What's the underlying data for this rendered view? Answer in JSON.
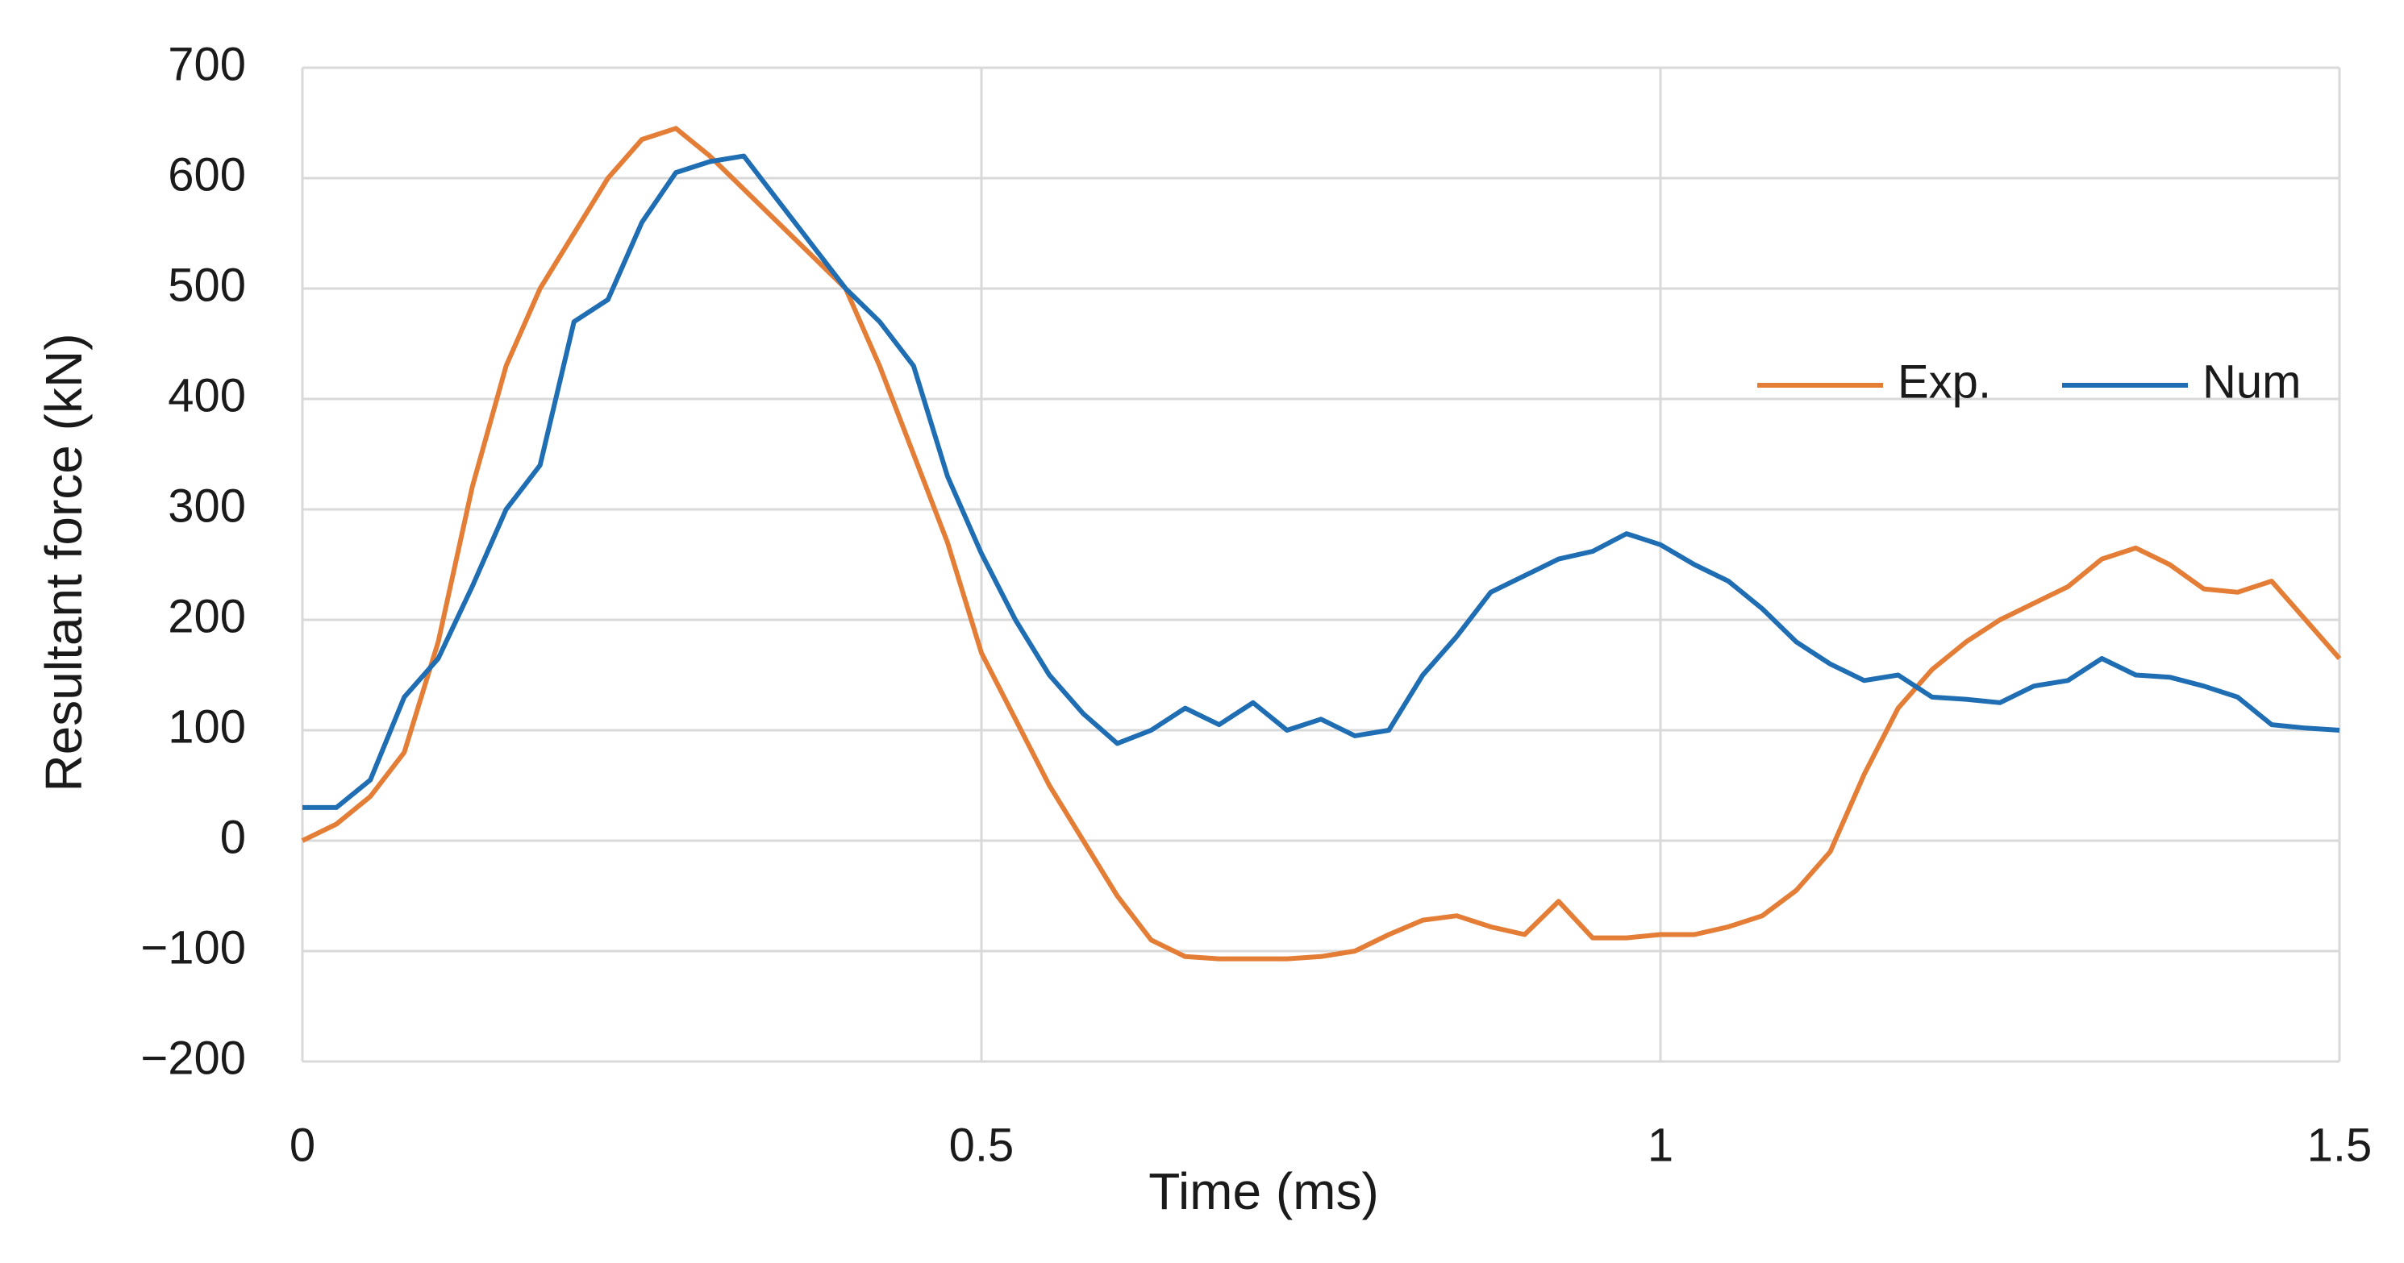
{
  "chart_data": {
    "type": "line",
    "x_label": "Time (ms)",
    "y_label": "Resultant force (kN)",
    "x": [
      0,
      0.025,
      0.05,
      0.075,
      0.1,
      0.125,
      0.15,
      0.175,
      0.2,
      0.225,
      0.25,
      0.275,
      0.3,
      0.325,
      0.35,
      0.375,
      0.4,
      0.425,
      0.45,
      0.475,
      0.5,
      0.525,
      0.55,
      0.575,
      0.6,
      0.625,
      0.65,
      0.675,
      0.7,
      0.725,
      0.75,
      0.775,
      0.8,
      0.825,
      0.85,
      0.875,
      0.9,
      0.925,
      0.95,
      0.975,
      1,
      1.025,
      1.05,
      1.075,
      1.1,
      1.125,
      1.15,
      1.175,
      1.2,
      1.225,
      1.25,
      1.275,
      1.3,
      1.325,
      1.35,
      1.375,
      1.4,
      1.425,
      1.45,
      1.475,
      1.5
    ],
    "series": [
      {
        "name": "Exp.",
        "color": "#e47d36",
        "values": [
          0,
          15,
          40,
          80,
          180,
          320,
          430,
          500,
          550,
          600,
          635,
          645,
          620,
          590,
          560,
          530,
          500,
          430,
          350,
          270,
          170,
          110,
          50,
          0,
          -50,
          -90,
          -105,
          -107,
          -107,
          -107,
          -105,
          -100,
          -85,
          -72,
          -68,
          -78,
          -85,
          -55,
          -88,
          -88,
          -85,
          -85,
          -78,
          -68,
          -45,
          -10,
          60,
          120,
          155,
          180,
          200,
          215,
          230,
          255,
          265,
          250,
          228,
          225,
          235,
          200,
          165
        ]
      },
      {
        "name": "Num",
        "color": "#1f6db3",
        "values": [
          30,
          30,
          55,
          130,
          165,
          230,
          300,
          340,
          470,
          490,
          560,
          605,
          615,
          620,
          580,
          540,
          500,
          470,
          430,
          330,
          260,
          200,
          150,
          115,
          88,
          100,
          120,
          105,
          125,
          100,
          110,
          95,
          100,
          150,
          185,
          225,
          240,
          255,
          262,
          278,
          268,
          250,
          235,
          210,
          180,
          160,
          145,
          150,
          130,
          128,
          125,
          140,
          145,
          165,
          150,
          148,
          140,
          130,
          105,
          102,
          100
        ]
      }
    ],
    "xlim": [
      0,
      1.5
    ],
    "xticks": [
      0,
      0.5,
      1,
      1.5
    ],
    "ylim": [
      -200,
      700
    ],
    "yticks": [
      {
        "value": -200,
        "label": "−200"
      },
      {
        "value": -100,
        "label": "−100"
      },
      0,
      100,
      200,
      300,
      400,
      500,
      600,
      700
    ],
    "grid": true,
    "legend": "right"
  }
}
